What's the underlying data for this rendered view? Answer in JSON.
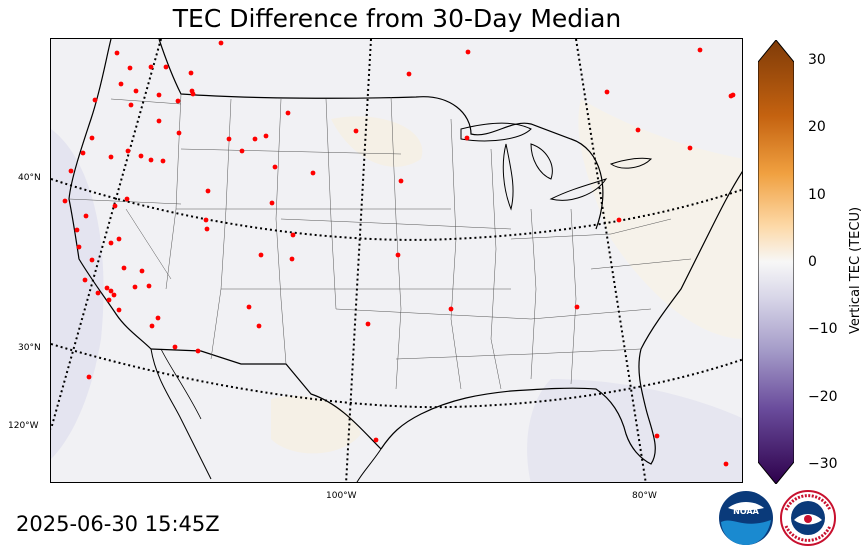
{
  "title": "TEC Difference from 30-Day Median",
  "timestamp": "2025-06-30 15:45Z",
  "map": {
    "lat_labels": [
      "40°N",
      "30°N",
      "120°W"
    ],
    "lon_labels": [
      "100°W",
      "80°W"
    ]
  },
  "colorbar": {
    "label": "Vertical TEC (TECU)",
    "ticks": [
      "30",
      "20",
      "10",
      "0",
      "−10",
      "−20",
      "−30"
    ],
    "range": [
      -30,
      30
    ],
    "colors": {
      "max": "#7f3b08",
      "high": "#e08214",
      "mid_high": "#fdb863",
      "zero": "#f7f7f7",
      "mid_low": "#b2abd2",
      "low": "#8073ac",
      "min": "#2d004b"
    }
  },
  "stations_color": "#ff0000",
  "logos": [
    "noaa-logo",
    "nws-logo"
  ]
}
